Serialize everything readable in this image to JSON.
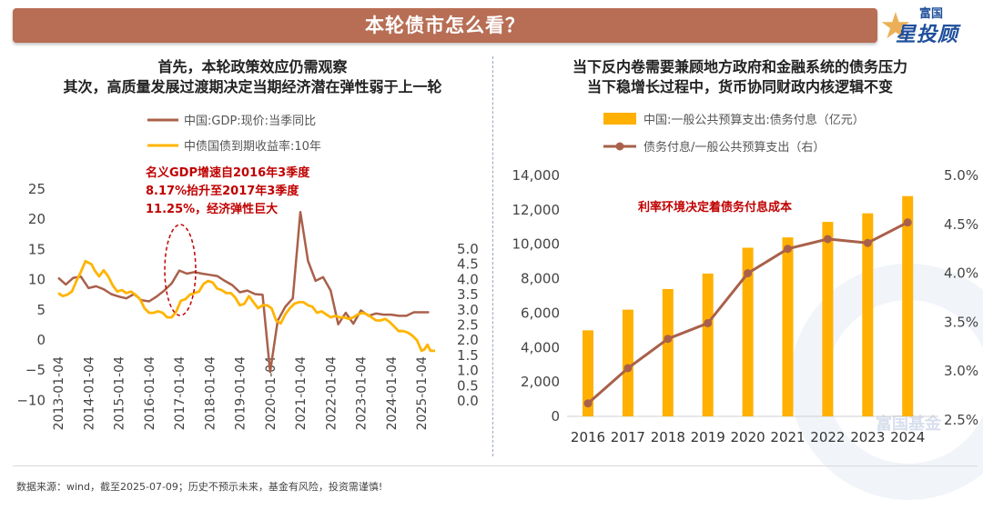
{
  "header": {
    "title": "本轮债市怎么看？"
  },
  "logo": {
    "top": "富国",
    "main": "星投顾"
  },
  "left_panel": {
    "title_lines": [
      "首先，本轮政策效应仍需观察",
      "其次，高质量发展过渡期决定当期经济潜在弹性弱于上一轮"
    ],
    "annotation_lines": [
      "名义GDP增速自2016年3季度",
      "8.17%抬升至2017年3季度",
      "11.25%，经济弹性巨大"
    ]
  },
  "right_panel": {
    "title_lines": [
      "当下反内卷需要兼顾地方政府和金融系统的债务压力",
      "当下稳增长过程中，货币协同财政内核逻辑不变"
    ],
    "annotation": "利率环境决定着债务付息成本"
  },
  "watermark": "富国基金",
  "source": "数据来源：wind，截至2025-07-09；历史不预示未来，基金有风险，投资需谨慎!",
  "colors": {
    "banner": "#b76e55",
    "gdp": "#a9604a",
    "bond": "#ffb400",
    "bar": "#ffb000",
    "ratio": "#a9604a",
    "annotation": "#c00000"
  },
  "chart_data": [
    {
      "type": "line",
      "legend_position": "top",
      "x_tick_labels": [
        "2013-01-04",
        "2014-01-04",
        "2015-01-04",
        "2016-01-04",
        "2017-01-04",
        "2018-01-04",
        "2019-01-04",
        "2020-01-04",
        "2021-01-04",
        "2022-01-04",
        "2023-01-04",
        "2024-01-04",
        "2025-01-04"
      ],
      "y_left": {
        "range": [
          -10,
          25
        ],
        "ticks": [
          "25",
          "20",
          "15",
          "10",
          "5",
          "0",
          "−5",
          "−10"
        ]
      },
      "y_right": {
        "range": [
          0.0,
          5.0
        ],
        "ticks": [
          "5.0",
          "4.5",
          "4.0",
          "3.5",
          "3.0",
          "2.5",
          "2.0",
          "1.5",
          "1.0",
          "0.5",
          "0.0"
        ]
      },
      "grid": false,
      "series": [
        {
          "name": "中国:GDP:现价:当季同比",
          "axis": "left",
          "x": [
            2013.0,
            2013.25,
            2013.5,
            2013.75,
            2014.0,
            2014.25,
            2014.5,
            2014.75,
            2015.0,
            2015.25,
            2015.5,
            2015.75,
            2016.0,
            2016.25,
            2016.5,
            2016.75,
            2017.0,
            2017.25,
            2017.5,
            2017.75,
            2018.0,
            2018.25,
            2018.5,
            2018.75,
            2019.0,
            2019.25,
            2019.5,
            2019.75,
            2020.0,
            2020.25,
            2020.5,
            2020.75,
            2021.0,
            2021.25,
            2021.5,
            2021.75,
            2022.0,
            2022.25,
            2022.5,
            2022.75,
            2023.0,
            2023.25,
            2023.5,
            2023.75,
            2024.0,
            2024.25,
            2024.5,
            2024.75,
            2025.0,
            2025.25
          ],
          "values": [
            10.3,
            9.2,
            10.3,
            10.5,
            8.6,
            8.9,
            8.4,
            7.6,
            7.2,
            6.9,
            7.6,
            6.6,
            6.4,
            7.2,
            8.2,
            9.4,
            11.5,
            11.0,
            11.25,
            11.0,
            10.8,
            10.6,
            9.8,
            9.1,
            7.9,
            8.2,
            7.6,
            7.5,
            -5.3,
            3.2,
            5.5,
            6.9,
            21.2,
            13.1,
            9.8,
            10.4,
            8.2,
            2.6,
            4.5,
            2.7,
            4.9,
            4.0,
            4.4,
            4.2,
            4.2,
            4.0,
            4.0,
            4.6,
            4.6,
            4.6
          ]
        },
        {
          "name": "中债国债到期收益率:10年",
          "axis": "right",
          "x": [
            2013.0,
            2013.15,
            2013.3,
            2013.45,
            2013.6,
            2013.75,
            2013.9,
            2014.0,
            2014.1,
            2014.2,
            2014.35,
            2014.5,
            2014.65,
            2014.8,
            2014.95,
            2015.1,
            2015.25,
            2015.4,
            2015.55,
            2015.7,
            2015.85,
            2016.0,
            2016.15,
            2016.3,
            2016.45,
            2016.6,
            2016.75,
            2016.9,
            2017.05,
            2017.2,
            2017.35,
            2017.5,
            2017.65,
            2017.8,
            2017.95,
            2018.1,
            2018.25,
            2018.4,
            2018.55,
            2018.7,
            2018.85,
            2019.0,
            2019.15,
            2019.3,
            2019.45,
            2019.6,
            2019.75,
            2019.9,
            2020.05,
            2020.2,
            2020.35,
            2020.5,
            2020.65,
            2020.8,
            2020.95,
            2021.1,
            2021.25,
            2021.4,
            2021.55,
            2021.7,
            2021.85,
            2022.0,
            2022.15,
            2022.3,
            2022.45,
            2022.6,
            2022.75,
            2022.9,
            2023.05,
            2023.2,
            2023.35,
            2023.5,
            2023.65,
            2023.8,
            2023.95,
            2024.1,
            2024.25,
            2024.4,
            2024.55,
            2024.7,
            2024.85,
            2025.0,
            2025.1,
            2025.2,
            2025.3,
            2025.45
          ],
          "values": [
            3.55,
            3.45,
            3.5,
            3.6,
            3.95,
            4.25,
            4.6,
            4.55,
            4.5,
            4.3,
            4.1,
            4.3,
            4.1,
            3.8,
            3.6,
            3.65,
            3.55,
            3.6,
            3.5,
            3.35,
            3.05,
            2.9,
            2.9,
            2.95,
            2.9,
            2.75,
            2.75,
            2.95,
            3.3,
            3.35,
            3.5,
            3.55,
            3.6,
            3.85,
            3.95,
            3.9,
            3.7,
            3.65,
            3.55,
            3.55,
            3.4,
            3.15,
            3.2,
            3.45,
            3.25,
            3.05,
            3.15,
            3.15,
            3.05,
            2.65,
            2.55,
            2.85,
            3.05,
            3.2,
            3.25,
            3.25,
            3.15,
            3.1,
            2.9,
            2.95,
            2.85,
            2.75,
            2.8,
            2.75,
            2.75,
            2.7,
            2.75,
            2.85,
            2.9,
            2.85,
            2.75,
            2.65,
            2.65,
            2.7,
            2.6,
            2.45,
            2.3,
            2.3,
            2.25,
            2.15,
            2.0,
            1.65,
            1.7,
            1.85,
            1.65,
            1.65
          ]
        }
      ]
    },
    {
      "type": "bar",
      "legend_position": "top",
      "categories": [
        "2016",
        "2017",
        "2018",
        "2019",
        "2020",
        "2021",
        "2022",
        "2023",
        "2024"
      ],
      "y_left": {
        "range": [
          0,
          14000
        ],
        "ticks": [
          "14,000",
          "12,000",
          "10,000",
          "8,000",
          "6,000",
          "4,000",
          "2,000",
          "0"
        ]
      },
      "y_right": {
        "range": [
          2.5,
          5.0
        ],
        "ticks": [
          "5.0%",
          "4.5%",
          "4.0%",
          "3.5%",
          "3.0%",
          "2.5%"
        ]
      },
      "grid": false,
      "series": [
        {
          "name": "中国:一般公共预算支出:债务付息（亿元）",
          "type": "bar",
          "axis": "left",
          "values": [
            5000,
            6200,
            7400,
            8300,
            9800,
            10400,
            11300,
            11800,
            12800
          ]
        },
        {
          "name": "债务付息/一般公共预算支出（右）",
          "type": "line",
          "axis": "right",
          "unit": "%",
          "values": [
            2.67,
            3.03,
            3.33,
            3.49,
            4.0,
            4.25,
            4.35,
            4.31,
            4.52
          ]
        }
      ]
    }
  ]
}
